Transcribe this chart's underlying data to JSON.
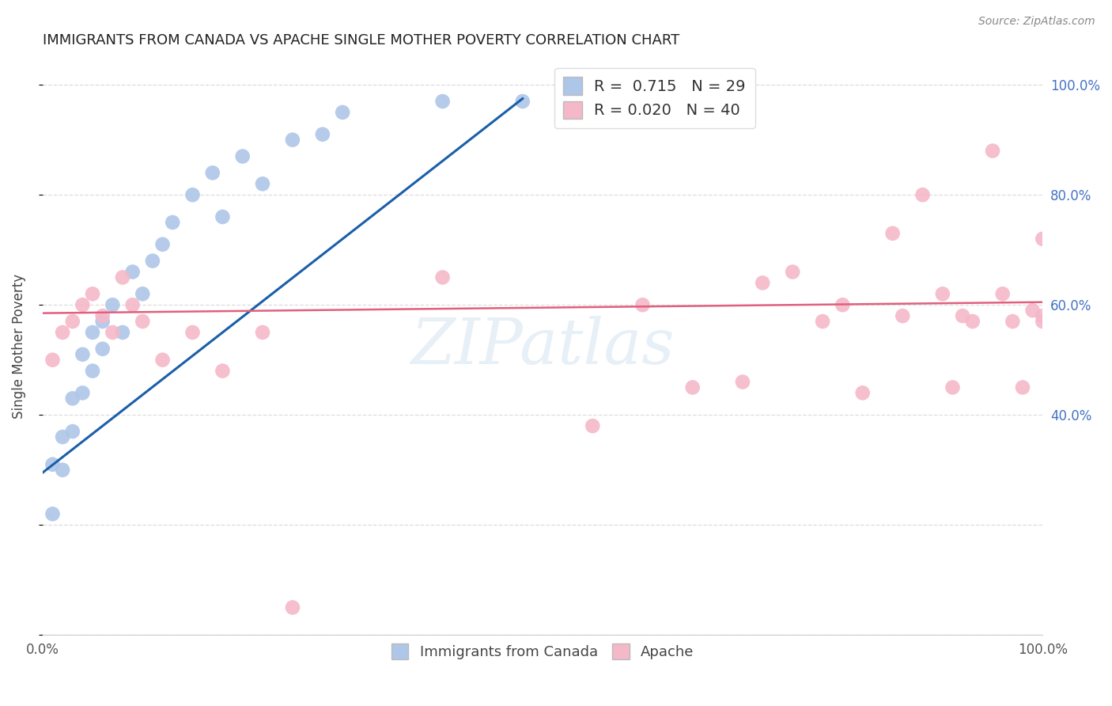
{
  "title": "IMMIGRANTS FROM CANADA VS APACHE SINGLE MOTHER POVERTY CORRELATION CHART",
  "source": "Source: ZipAtlas.com",
  "ylabel": "Single Mother Poverty",
  "legend_labels": [
    "Immigrants from Canada",
    "Apache"
  ],
  "legend_r_blue": "R =  0.715",
  "legend_n_blue": "N = 29",
  "legend_r_pink": "R = 0.020",
  "legend_n_pink": "N = 40",
  "blue_color": "#aec6e8",
  "pink_color": "#f4b8c8",
  "blue_line_color": "#1a5fa8",
  "pink_line_color": "#e0607e",
  "watermark": "ZIPatlas",
  "blue_scatter_x": [
    0.001,
    0.001,
    0.002,
    0.002,
    0.003,
    0.003,
    0.004,
    0.004,
    0.005,
    0.005,
    0.006,
    0.006,
    0.007,
    0.008,
    0.009,
    0.01,
    0.011,
    0.012,
    0.013,
    0.015,
    0.017,
    0.018,
    0.02,
    0.022,
    0.025,
    0.028,
    0.03,
    0.04,
    0.048
  ],
  "blue_scatter_y": [
    0.31,
    0.22,
    0.3,
    0.36,
    0.37,
    0.43,
    0.44,
    0.51,
    0.55,
    0.48,
    0.57,
    0.52,
    0.6,
    0.55,
    0.66,
    0.62,
    0.68,
    0.71,
    0.75,
    0.8,
    0.84,
    0.76,
    0.87,
    0.82,
    0.9,
    0.91,
    0.95,
    0.97,
    0.97
  ],
  "pink_scatter_x": [
    0.001,
    0.002,
    0.003,
    0.004,
    0.005,
    0.006,
    0.007,
    0.008,
    0.009,
    0.01,
    0.012,
    0.015,
    0.018,
    0.022,
    0.025,
    0.04,
    0.055,
    0.06,
    0.065,
    0.07,
    0.072,
    0.075,
    0.078,
    0.08,
    0.082,
    0.085,
    0.086,
    0.088,
    0.09,
    0.091,
    0.092,
    0.093,
    0.095,
    0.096,
    0.097,
    0.098,
    0.099,
    0.1,
    0.1,
    0.1
  ],
  "pink_scatter_y": [
    0.5,
    0.55,
    0.57,
    0.6,
    0.62,
    0.58,
    0.55,
    0.65,
    0.6,
    0.57,
    0.5,
    0.55,
    0.48,
    0.55,
    0.05,
    0.65,
    0.38,
    0.6,
    0.45,
    0.46,
    0.64,
    0.66,
    0.57,
    0.6,
    0.44,
    0.73,
    0.58,
    0.8,
    0.62,
    0.45,
    0.58,
    0.57,
    0.88,
    0.62,
    0.57,
    0.45,
    0.59,
    0.57,
    0.72,
    0.58
  ],
  "xlim": [
    0.0,
    0.1
  ],
  "ylim": [
    0.0,
    1.05
  ],
  "figsize": [
    14.06,
    8.92
  ],
  "dpi": 100,
  "title_fontsize": 13,
  "axis_label_fontsize": 12,
  "tick_fontsize": 12,
  "legend_fontsize": 14,
  "right_tick_color": "#4472c4",
  "grid_color": "#dddddd",
  "title_color": "#222222",
  "source_color": "#888888"
}
